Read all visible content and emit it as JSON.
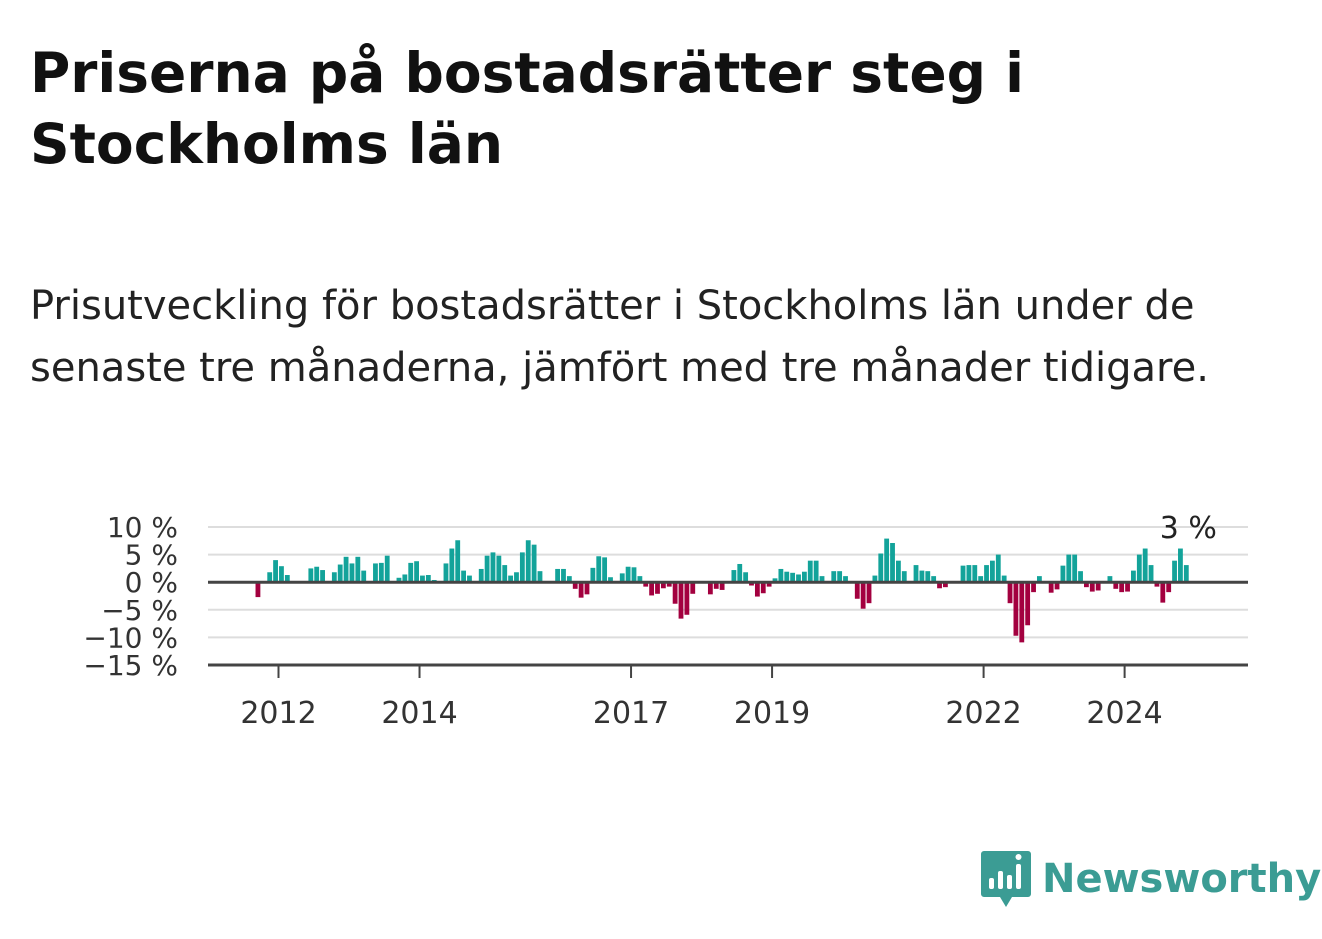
{
  "title": "Priserna på bostadsrätter steg i Stockholms län",
  "subtitle": "Prisutveckling för bostadsrätter i Stockholms län under de senaste tre månaderna, jämfört med tre månader tidigare.",
  "brand": {
    "name": "Newsworthy",
    "color": "#3b9c94"
  },
  "colors": {
    "positive": "#13a39a",
    "negative": "#a3003f",
    "grid": "#dddddd",
    "axis": "#444444"
  },
  "chart_data": {
    "type": "bar",
    "ylim": [
      -15,
      10
    ],
    "y_ticks": [
      10,
      5,
      0,
      -5,
      -10,
      -15
    ],
    "y_tick_labels": [
      "10 %",
      "5 %",
      "0 %",
      "−5 %",
      "−10 %",
      "−15 %"
    ],
    "x_ticks": [
      "2012",
      "2014",
      "2017",
      "2019",
      "2022",
      "2024"
    ],
    "last_value_label": "3 %",
    "x": [
      "2011-01",
      "2011-02",
      "2011-03",
      "2011-04",
      "2011-05",
      "2011-06",
      "2011-07",
      "2011-08",
      "2011-09",
      "2011-10",
      "2011-11",
      "2011-12",
      "2012-01",
      "2012-02",
      "2012-03",
      "2012-04",
      "2012-05",
      "2012-06",
      "2012-07",
      "2012-08",
      "2012-09",
      "2012-10",
      "2012-11",
      "2012-12",
      "2013-01",
      "2013-02",
      "2013-03",
      "2013-04",
      "2013-05",
      "2013-06",
      "2013-07",
      "2013-08",
      "2013-09",
      "2013-10",
      "2013-11",
      "2013-12",
      "2014-01",
      "2014-02",
      "2014-03",
      "2014-04",
      "2014-05",
      "2014-06",
      "2014-07",
      "2014-08",
      "2014-09",
      "2014-10",
      "2014-11",
      "2014-12",
      "2015-01",
      "2015-02",
      "2015-03",
      "2015-04",
      "2015-05",
      "2015-06",
      "2015-07",
      "2015-08",
      "2015-09",
      "2015-10",
      "2015-11",
      "2015-12",
      "2016-01",
      "2016-02",
      "2016-03",
      "2016-04",
      "2016-05",
      "2016-06",
      "2016-07",
      "2016-08",
      "2016-09",
      "2016-10",
      "2016-11",
      "2016-12",
      "2017-01",
      "2017-02",
      "2017-03",
      "2017-04",
      "2017-05",
      "2017-06",
      "2017-07",
      "2017-08",
      "2017-09",
      "2017-10",
      "2017-11",
      "2017-12",
      "2018-01",
      "2018-02",
      "2018-03",
      "2018-04",
      "2018-05",
      "2018-06",
      "2018-07",
      "2018-08",
      "2018-09",
      "2018-10",
      "2018-11",
      "2018-12",
      "2019-01",
      "2019-02",
      "2019-03",
      "2019-04",
      "2019-05",
      "2019-06",
      "2019-07",
      "2019-08",
      "2019-09",
      "2019-10",
      "2019-11",
      "2019-12",
      "2020-01",
      "2020-02",
      "2020-03",
      "2020-04",
      "2020-05",
      "2020-06",
      "2020-07",
      "2020-08",
      "2020-09",
      "2020-10",
      "2020-11",
      "2020-12",
      "2021-01",
      "2021-02",
      "2021-03",
      "2021-04",
      "2021-05",
      "2021-06",
      "2021-07",
      "2021-08",
      "2021-09",
      "2021-10",
      "2021-11",
      "2021-12",
      "2022-01",
      "2022-02",
      "2022-03",
      "2022-04",
      "2022-05",
      "2022-06",
      "2022-07",
      "2022-08",
      "2022-09",
      "2022-10",
      "2022-11",
      "2022-12",
      "2023-01",
      "2023-02",
      "2023-03",
      "2023-04",
      "2023-05",
      "2023-06",
      "2023-07",
      "2023-08",
      "2023-09",
      "2023-10",
      "2023-11",
      "2023-12",
      "2024-01",
      "2024-02",
      "2024-03",
      "2024-04",
      "2024-05",
      "2024-06",
      "2024-07",
      "2024-08",
      "2024-09",
      "2024-10",
      "2024-11",
      "2024-12",
      "2025-01",
      "2025-02",
      "2025-03",
      "2025-04",
      "2025-05",
      "2025-06",
      "2025-07",
      "2025-08",
      "2025-09"
    ],
    "values": [
      0,
      0,
      0,
      0,
      0,
      0,
      0,
      0,
      -2.7,
      0,
      1.8,
      4,
      2.9,
      1.3,
      0,
      0,
      0,
      2.5,
      2.8,
      2.2,
      0,
      1.8,
      3.2,
      4.6,
      3.4,
      4.6,
      2.1,
      0,
      3.4,
      3.5,
      4.8,
      0,
      0.8,
      1.4,
      3.5,
      3.8,
      1.2,
      1.3,
      0.4,
      0,
      3.4,
      6.1,
      7.6,
      2.1,
      1.2,
      0,
      2.4,
      4.8,
      5.4,
      4.8,
      3.1,
      1.2,
      1.8,
      5.4,
      7.6,
      6.8,
      2,
      0,
      0,
      2.4,
      2.4,
      1.1,
      -1.2,
      -2.8,
      -2.2,
      2.6,
      4.7,
      4.5,
      0.9,
      0,
      1.6,
      2.8,
      2.7,
      1.1,
      -0.8,
      -2.4,
      -2.1,
      -1.1,
      -0.8,
      -3.9,
      -6.6,
      -5.9,
      -2.1,
      0,
      0,
      -2.2,
      -1.2,
      -1.4,
      0,
      2.2,
      3.3,
      1.8,
      -0.6,
      -2.6,
      -2,
      -0.8,
      0.7,
      2.4,
      1.9,
      1.7,
      1.4,
      1.9,
      3.9,
      3.9,
      1.1,
      0,
      2,
      2,
      1.1,
      0,
      -3,
      -4.8,
      -3.8,
      1.2,
      5.2,
      7.9,
      7.1,
      3.9,
      2,
      0,
      3.1,
      2.1,
      2,
      1.1,
      -1.1,
      -0.9,
      0,
      0,
      3,
      3.1,
      3.1,
      1.1,
      3.1,
      3.9,
      5,
      1.2,
      -3.8,
      -9.7,
      -10.9,
      -7.8,
      -1.8,
      1.1,
      0,
      -1.9,
      -1.3,
      3,
      5,
      5,
      2,
      -0.9,
      -1.7,
      -1.5,
      0,
      1.1,
      -1.2,
      -1.8,
      -1.7,
      2.1,
      5,
      6.1,
      3.1,
      -0.8,
      -3.7,
      -1.8,
      3.9,
      6.1,
      3.1,
      0,
      0,
      0,
      0,
      0,
      0,
      0,
      0,
      0,
      0
    ]
  }
}
